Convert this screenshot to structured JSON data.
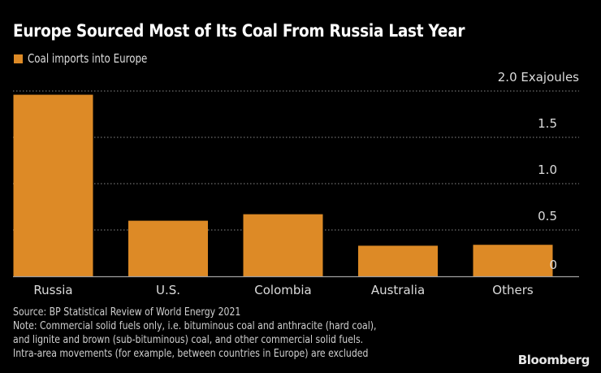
{
  "header": {
    "title": "Europe Sourced Most of Its Coal From Russia Last Year"
  },
  "footer": {
    "source": "Source: BP Statistical Review of World Energy 2021",
    "note_lines": [
      "Note: Commercial solid fuels only, i.e. bituminous coal and anthracite (hard coal),",
      "and lignite and brown (sub-bituminous) coal, and other commercial solid fuels.",
      "Intra-area movements (for example, between countries in Europe) are excluded"
    ],
    "brand": "Bloomberg"
  },
  "colors": {
    "bar": "#dd8a26",
    "background": "#000000",
    "grid": "#8a8a8a",
    "axis": "#a0a0a0"
  },
  "chart_data": {
    "type": "bar",
    "title": "Europe Sourced Most of Its Coal From Russia Last Year",
    "xlabel": "",
    "ylabel": "Exajoules",
    "categories": [
      "Russia",
      "U.S.",
      "Colombia",
      "Australia",
      "Others"
    ],
    "series": [
      {
        "name": "Coal imports into Europe",
        "values": [
          1.96,
          0.6,
          0.67,
          0.33,
          0.34
        ]
      }
    ],
    "ylim": [
      0,
      2.0
    ],
    "yticks": [
      0,
      0.5,
      1.0,
      1.5,
      2.0
    ],
    "ytick_labels": [
      "0",
      "0.5",
      "1.0",
      "1.5",
      "2.0 Exajoules"
    ],
    "grid": true,
    "grid_style": "dotted",
    "y_axis_side": "right",
    "legend_position": "top-left"
  }
}
